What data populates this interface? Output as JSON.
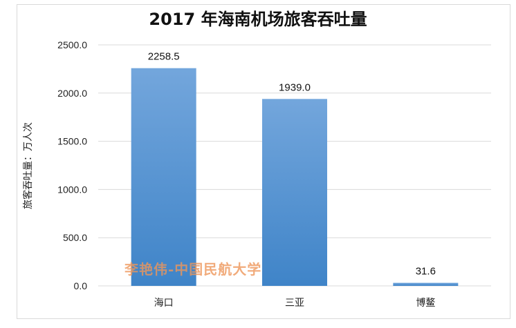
{
  "chart_data": {
    "type": "bar",
    "title": "2017 年海南机场旅客吞吐量",
    "ylabel": "旅客吞吐量：万人次",
    "xlabel": "",
    "categories": [
      "海口",
      "三亚",
      "博鳌"
    ],
    "values": [
      2258.5,
      1939.0,
      31.6
    ],
    "value_labels": [
      "2258.5",
      "1939.0",
      "31.6"
    ],
    "ylim": [
      0,
      2500
    ],
    "yticks": [
      "0.0",
      "500.0",
      "1000.0",
      "1500.0",
      "2000.0",
      "2500.0"
    ],
    "grid": true,
    "legend": "none",
    "bar_color_top": "#73a6dc",
    "bar_color_bottom": "#3f84c8"
  },
  "watermark": "李艳伟-中国民航大学"
}
